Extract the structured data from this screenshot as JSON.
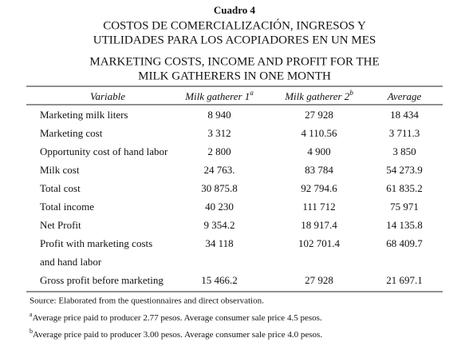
{
  "label": "Cuadro 4",
  "title_es": [
    "COSTOS DE COMERCIALIZACIÓN, INGRESOS Y",
    "UTILIDADES PARA LOS ACOPIADORES EN UN MES"
  ],
  "title_en": [
    "MARKETING COSTS, INCOME AND PROFIT FOR THE",
    "MILK GATHERERS IN ONE MONTH"
  ],
  "table": {
    "headers": [
      {
        "text": "Variable"
      },
      {
        "text": "Milk gatherer 1",
        "sup": "a"
      },
      {
        "text": "Milk gatherer 2",
        "sup": "b"
      },
      {
        "text": "Average"
      }
    ],
    "rows": [
      {
        "label": [
          "Marketing milk liters"
        ],
        "cells": [
          "8 940",
          "27 928",
          "18 434"
        ]
      },
      {
        "label": [
          "Marketing cost"
        ],
        "cells": [
          "3 312",
          "4 110.56",
          "3 711.3"
        ]
      },
      {
        "label": [
          "Opportunity cost of hand labor"
        ],
        "cells": [
          "2 800",
          "4 900",
          "3 850"
        ]
      },
      {
        "label": [
          "Milk cost"
        ],
        "cells": [
          "24 763.",
          "83 784",
          "54 273.9"
        ]
      },
      {
        "label": [
          "Total cost"
        ],
        "cells": [
          "30 875.8",
          "92 794.6",
          "61 835.2"
        ]
      },
      {
        "label": [
          "Total income"
        ],
        "cells": [
          "40 230",
          "111 712",
          "75 971"
        ]
      },
      {
        "label": [
          "Net Profit"
        ],
        "cells": [
          "9 354.2",
          "18 917.4",
          "14 135.8"
        ]
      },
      {
        "label": [
          "Profit with marketing costs",
          "and hand labor"
        ],
        "cells": [
          "34 118",
          "102 701.4",
          "68 409.7"
        ]
      },
      {
        "label": [
          "Gross profit before marketing"
        ],
        "cells": [
          "15 466.2",
          "27 928",
          "21 697.1"
        ]
      }
    ]
  },
  "source": "Source: Elaborated from the questionnaires and direct observation.",
  "footnotes": [
    {
      "mark": "a",
      "text": "Average price paid to producer 2.77 pesos. Average consumer sale price 4.5 pesos."
    },
    {
      "mark": "b",
      "text": "Average price paid to producer 3.00 pesos. Average consumer sale price 4.0 pesos."
    }
  ]
}
